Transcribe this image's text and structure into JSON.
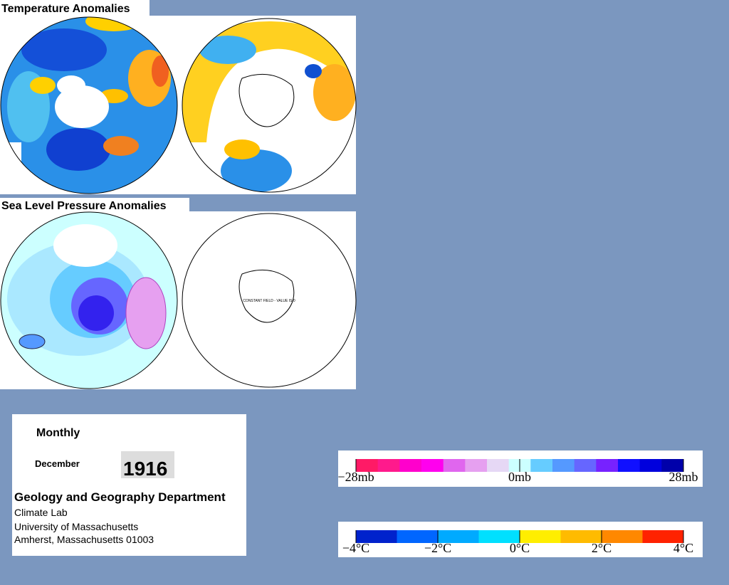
{
  "panels": [
    {
      "title": "Temperature Anomalies"
    },
    {
      "title": "Sea Level Pressure Anomalies",
      "note": "CONSTANT FIELD - VALUE IS 0"
    }
  ],
  "info": {
    "period": "Monthly",
    "month": "December",
    "year": "1916",
    "department": "Geology and Geography Department",
    "address": [
      "Climate Lab",
      "University of Massachusetts",
      "Amherst, Massachusetts 01003"
    ]
  },
  "legends": [
    {
      "labels": [
        "−28mb",
        "0mb",
        "28mb"
      ],
      "colors": [
        "#ff1a66",
        "#ff1a8c",
        "#ff00cc",
        "#ff00ee",
        "#e066ee",
        "#e6a0f0",
        "#e6d8f5",
        "#ccffff",
        "#66ccff",
        "#5599ff",
        "#6666ff",
        "#7722ff",
        "#1010ff",
        "#0000dd",
        "#0000aa"
      ]
    },
    {
      "labels": [
        "−4°C",
        "−2°C",
        "0°C",
        "2°C",
        "4°C"
      ],
      "colors": [
        "#0022cc",
        "#0066ff",
        "#00aaff",
        "#00e0ff",
        "#ffee00",
        "#ffbb00",
        "#ff8800",
        "#ff2200"
      ]
    }
  ]
}
